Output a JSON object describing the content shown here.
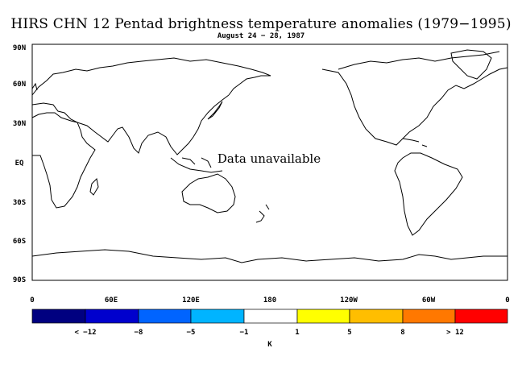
{
  "title": "HIRS CHN 12 Pentad brightness temperature anomalies (1979−1995)",
  "subtitle": "August 24 − 28, 1987",
  "map": {
    "message": "Data unavailable",
    "lat_labels": [
      "90N",
      "60N",
      "30N",
      "EQ",
      "30S",
      "60S",
      "90S"
    ],
    "lon_labels": [
      "0",
      "60E",
      "120E",
      "180",
      "120W",
      "60W",
      "0"
    ],
    "projection": "equirectangular, 0° to 360° longitude, 90N to 90S"
  },
  "colorbar": {
    "unit": "K",
    "labels": [
      "< −12",
      "−8",
      "−5",
      "−1",
      "1",
      "5",
      "8",
      "> 12"
    ],
    "colors": [
      "#000080",
      "#0000cd",
      "#0064ff",
      "#00b4ff",
      "#ffffff",
      "#ffff00",
      "#ffbe00",
      "#ff7800",
      "#ff0000"
    ]
  }
}
